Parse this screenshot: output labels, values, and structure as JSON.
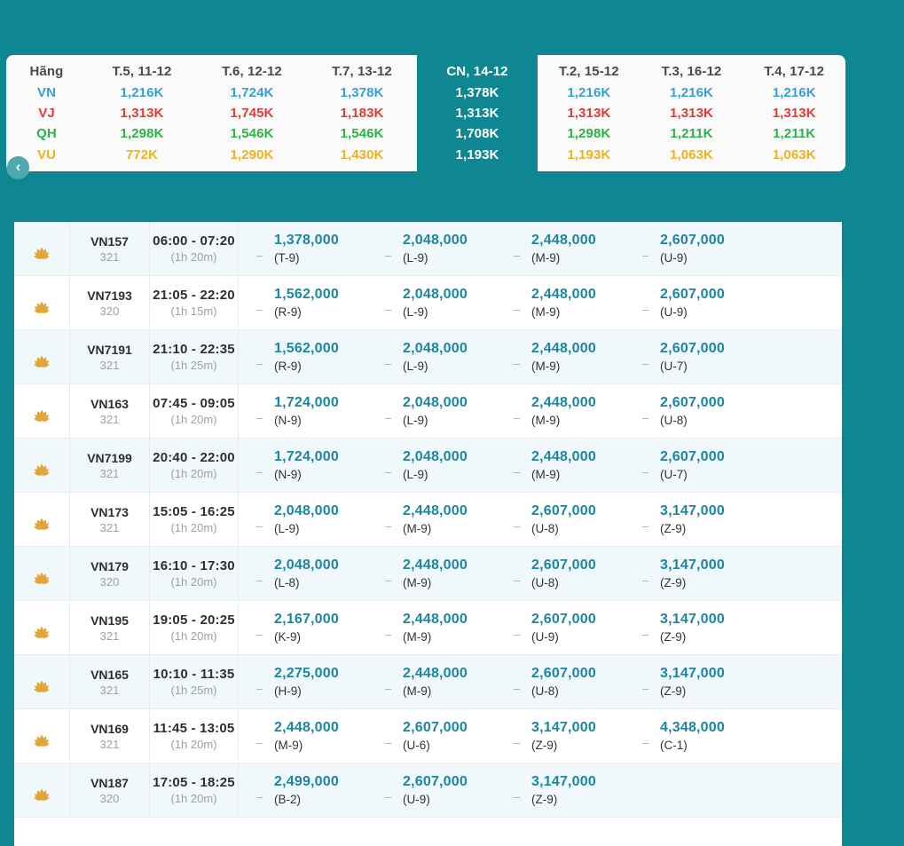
{
  "colors": {
    "page_background": "#0E8793",
    "card_background": "#FAFAFA",
    "price_teal": "#1B86A0",
    "lotus_gold": "#E2A53A",
    "row_alt_tint": "#F1F8FB",
    "back_button": "#4FA7B0"
  },
  "icons": {
    "chevron_left": "‹",
    "fare_dash": "–",
    "airline_logo": "vietnam-airlines-lotus"
  },
  "fare_calendar": {
    "airline_column_header": "Hãng",
    "airlines": [
      {
        "code": "VN",
        "color": "#35A0D8"
      },
      {
        "code": "VJ",
        "color": "#E23B35"
      },
      {
        "code": "QH",
        "color": "#2CB248"
      },
      {
        "code": "VU",
        "color": "#F2B01E"
      }
    ],
    "left_days": [
      {
        "date": "T.5, 11-12",
        "prices": [
          "1,216K",
          "1,313K",
          "1,298K",
          "772K"
        ]
      },
      {
        "date": "T.6, 12-12",
        "prices": [
          "1,724K",
          "1,745K",
          "1,546K",
          "1,290K"
        ]
      },
      {
        "date": "T.7, 13-12",
        "prices": [
          "1,378K",
          "1,183K",
          "1,546K",
          "1,430K"
        ]
      }
    ],
    "selected_day": {
      "date": "CN, 14-12",
      "prices": [
        "1,378K",
        "1,313K",
        "1,708K",
        "1,193K"
      ]
    },
    "right_days": [
      {
        "date": "T.2, 15-12",
        "prices": [
          "1,216K",
          "1,313K",
          "1,298K",
          "1,193K"
        ]
      },
      {
        "date": "T.3, 16-12",
        "prices": [
          "1,216K",
          "1,313K",
          "1,211K",
          "1,063K"
        ]
      },
      {
        "date": "T.4, 17-12",
        "prices": [
          "1,216K",
          "1,313K",
          "1,211K",
          "1,063K"
        ]
      }
    ]
  },
  "flights": {
    "rows": [
      {
        "flight": "VN157",
        "aircraft": "321",
        "time": "06:00 - 07:20",
        "duration": "(1h 20m)",
        "fares": [
          {
            "price": "1,378,000",
            "cls": "(T-9)"
          },
          {
            "price": "2,048,000",
            "cls": "(L-9)"
          },
          {
            "price": "2,448,000",
            "cls": "(M-9)"
          },
          {
            "price": "2,607,000",
            "cls": "(U-9)"
          }
        ]
      },
      {
        "flight": "VN7193",
        "aircraft": "320",
        "time": "21:05 - 22:20",
        "duration": "(1h 15m)",
        "fares": [
          {
            "price": "1,562,000",
            "cls": "(R-9)"
          },
          {
            "price": "2,048,000",
            "cls": "(L-9)"
          },
          {
            "price": "2,448,000",
            "cls": "(M-9)"
          },
          {
            "price": "2,607,000",
            "cls": "(U-9)"
          }
        ]
      },
      {
        "flight": "VN7191",
        "aircraft": "321",
        "time": "21:10 - 22:35",
        "duration": "(1h 25m)",
        "fares": [
          {
            "price": "1,562,000",
            "cls": "(R-9)"
          },
          {
            "price": "2,048,000",
            "cls": "(L-9)"
          },
          {
            "price": "2,448,000",
            "cls": "(M-9)"
          },
          {
            "price": "2,607,000",
            "cls": "(U-7)"
          }
        ]
      },
      {
        "flight": "VN163",
        "aircraft": "321",
        "time": "07:45 - 09:05",
        "duration": "(1h 20m)",
        "fares": [
          {
            "price": "1,724,000",
            "cls": "(N-9)"
          },
          {
            "price": "2,048,000",
            "cls": "(L-9)"
          },
          {
            "price": "2,448,000",
            "cls": "(M-9)"
          },
          {
            "price": "2,607,000",
            "cls": "(U-8)"
          }
        ]
      },
      {
        "flight": "VN7199",
        "aircraft": "321",
        "time": "20:40 - 22:00",
        "duration": "(1h 20m)",
        "fares": [
          {
            "price": "1,724,000",
            "cls": "(N-9)"
          },
          {
            "price": "2,048,000",
            "cls": "(L-9)"
          },
          {
            "price": "2,448,000",
            "cls": "(M-9)"
          },
          {
            "price": "2,607,000",
            "cls": "(U-7)"
          }
        ]
      },
      {
        "flight": "VN173",
        "aircraft": "321",
        "time": "15:05 - 16:25",
        "duration": "(1h 20m)",
        "fares": [
          {
            "price": "2,048,000",
            "cls": "(L-9)"
          },
          {
            "price": "2,448,000",
            "cls": "(M-9)"
          },
          {
            "price": "2,607,000",
            "cls": "(U-8)"
          },
          {
            "price": "3,147,000",
            "cls": "(Z-9)"
          }
        ]
      },
      {
        "flight": "VN179",
        "aircraft": "320",
        "time": "16:10 - 17:30",
        "duration": "(1h 20m)",
        "fares": [
          {
            "price": "2,048,000",
            "cls": "(L-8)"
          },
          {
            "price": "2,448,000",
            "cls": "(M-9)"
          },
          {
            "price": "2,607,000",
            "cls": "(U-8)"
          },
          {
            "price": "3,147,000",
            "cls": "(Z-9)"
          }
        ]
      },
      {
        "flight": "VN195",
        "aircraft": "321",
        "time": "19:05 - 20:25",
        "duration": "(1h 20m)",
        "fares": [
          {
            "price": "2,167,000",
            "cls": "(K-9)"
          },
          {
            "price": "2,448,000",
            "cls": "(M-9)"
          },
          {
            "price": "2,607,000",
            "cls": "(U-9)"
          },
          {
            "price": "3,147,000",
            "cls": "(Z-9)"
          }
        ]
      },
      {
        "flight": "VN165",
        "aircraft": "321",
        "time": "10:10 - 11:35",
        "duration": "(1h 25m)",
        "fares": [
          {
            "price": "2,275,000",
            "cls": "(H-9)"
          },
          {
            "price": "2,448,000",
            "cls": "(M-9)"
          },
          {
            "price": "2,607,000",
            "cls": "(U-8)"
          },
          {
            "price": "3,147,000",
            "cls": "(Z-9)"
          }
        ]
      },
      {
        "flight": "VN169",
        "aircraft": "321",
        "time": "11:45 - 13:05",
        "duration": "(1h 20m)",
        "fares": [
          {
            "price": "2,448,000",
            "cls": "(M-9)"
          },
          {
            "price": "2,607,000",
            "cls": "(U-6)"
          },
          {
            "price": "3,147,000",
            "cls": "(Z-9)"
          },
          {
            "price": "4,348,000",
            "cls": "(C-1)"
          }
        ]
      },
      {
        "flight": "VN187",
        "aircraft": "320",
        "time": "17:05 - 18:25",
        "duration": "(1h 20m)",
        "fares": [
          {
            "price": "2,499,000",
            "cls": "(B-2)"
          },
          {
            "price": "2,607,000",
            "cls": "(U-9)"
          },
          {
            "price": "3,147,000",
            "cls": "(Z-9)"
          }
        ]
      }
    ]
  }
}
